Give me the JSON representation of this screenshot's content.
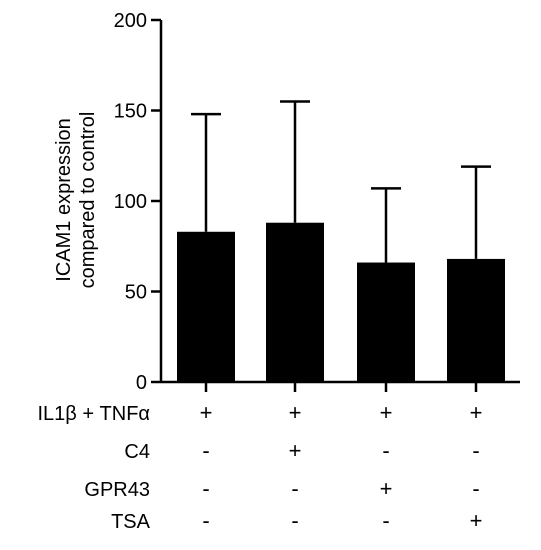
{
  "chart_data": {
    "type": "bar",
    "ylabel_lines": [
      "ICAM1 expression",
      "compared to control"
    ],
    "ylim": [
      0,
      200
    ],
    "yticks": [
      "0",
      "50",
      "100",
      "150",
      "200"
    ],
    "ytick_values": [
      0,
      50,
      100,
      150,
      200
    ],
    "values": [
      83,
      88,
      66,
      68
    ],
    "error_upper": [
      148,
      155,
      107,
      119
    ],
    "bar_color": "#000000",
    "conditions": [
      {
        "label": "IL1β + TNFα",
        "marks": [
          "+",
          "+",
          "+",
          "+"
        ]
      },
      {
        "label": "C4",
        "marks": [
          "-",
          "+",
          "-",
          "-"
        ]
      },
      {
        "label": "GPR43",
        "marks": [
          "-",
          "-",
          "+",
          "-"
        ]
      },
      {
        "label": "TSA",
        "marks": [
          "-",
          "-",
          "-",
          "+"
        ]
      }
    ]
  }
}
